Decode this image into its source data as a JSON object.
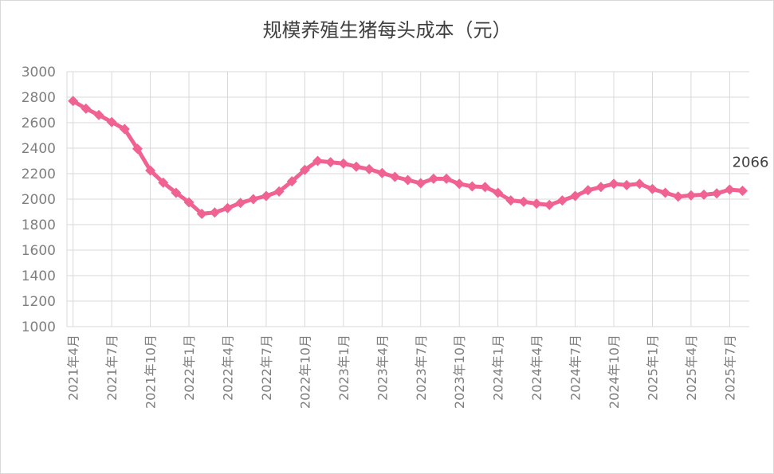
{
  "chart_data": {
    "type": "line",
    "title": "规模养殖生猪每头成本（元）",
    "xlabel": "",
    "ylabel": "",
    "ylim": [
      1000,
      3000
    ],
    "y_ticks": [
      1000,
      1200,
      1400,
      1600,
      1800,
      2000,
      2200,
      2400,
      2600,
      2800,
      3000
    ],
    "grid": true,
    "legend": "none",
    "tick_labels": [
      "2021年4月",
      "2021年7月",
      "2021年10月",
      "2022年1月",
      "2022年4月",
      "2022年7月",
      "2022年10月",
      "2023年1月",
      "2023年4月",
      "2023年7月",
      "2023年10月",
      "2024年1月",
      "2024年4月",
      "2024年7月",
      "2024年10月",
      "2025年1月",
      "2025年4月",
      "2025年7月"
    ],
    "tick_every": 3,
    "series": [
      {
        "color": "#f06292",
        "values": [
          2770,
          2710,
          2660,
          2605,
          2550,
          2395,
          2225,
          2130,
          2050,
          1975,
          1885,
          1895,
          1930,
          1970,
          2000,
          2025,
          2060,
          2140,
          2230,
          2300,
          2290,
          2280,
          2255,
          2235,
          2205,
          2175,
          2150,
          2125,
          2160,
          2160,
          2120,
          2100,
          2095,
          2050,
          1990,
          1980,
          1965,
          1955,
          1990,
          2025,
          2070,
          2095,
          2120,
          2110,
          2120,
          2080,
          2050,
          2020,
          2030,
          2035,
          2045,
          2075,
          2066
        ]
      }
    ],
    "annotations": [
      {
        "text": "2066",
        "index": 52
      }
    ]
  }
}
